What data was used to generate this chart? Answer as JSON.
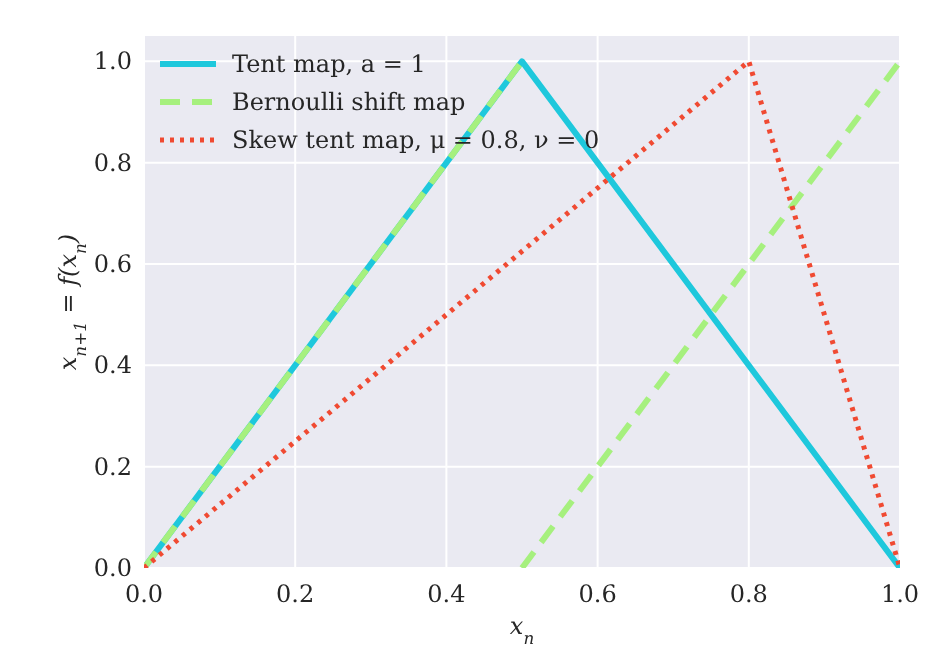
{
  "chart_data": {
    "type": "line",
    "xlabel": "x$_{n}$",
    "ylabel": "x$_{n+1}$ = f(x$_{n}$)",
    "xlim": [
      0,
      1
    ],
    "ylim": [
      0,
      1.05
    ],
    "xticks": [
      {
        "value": 0,
        "label": "0.0"
      },
      0.2,
      0.4,
      0.6,
      0.8,
      {
        "value": 1,
        "label": "1.0"
      }
    ],
    "yticks": [
      {
        "value": 0,
        "label": "0.0"
      },
      0.2,
      0.4,
      0.6,
      0.8,
      {
        "value": 1,
        "label": "1.0"
      }
    ],
    "grid": true,
    "legend": "top left",
    "series": [
      {
        "name": "Tent map, a = 1",
        "color": "#1ec8dc",
        "line_style": "solid",
        "x": [
          0,
          0.5,
          1
        ],
        "values": [
          0,
          1,
          0
        ]
      },
      {
        "name": "Bernoulli shift map",
        "color": "#a6f07e",
        "line_style": "dashed",
        "x": [
          0,
          0.5,
          null,
          0.5,
          1
        ],
        "values": [
          0,
          1,
          null,
          0,
          1
        ]
      },
      {
        "name": "Skew tent map, μ = 0.8, ν = 0",
        "color": "#f04a32",
        "line_style": "dotted",
        "x": [
          0,
          0.8,
          1
        ],
        "values": [
          0,
          1,
          0
        ]
      }
    ]
  }
}
